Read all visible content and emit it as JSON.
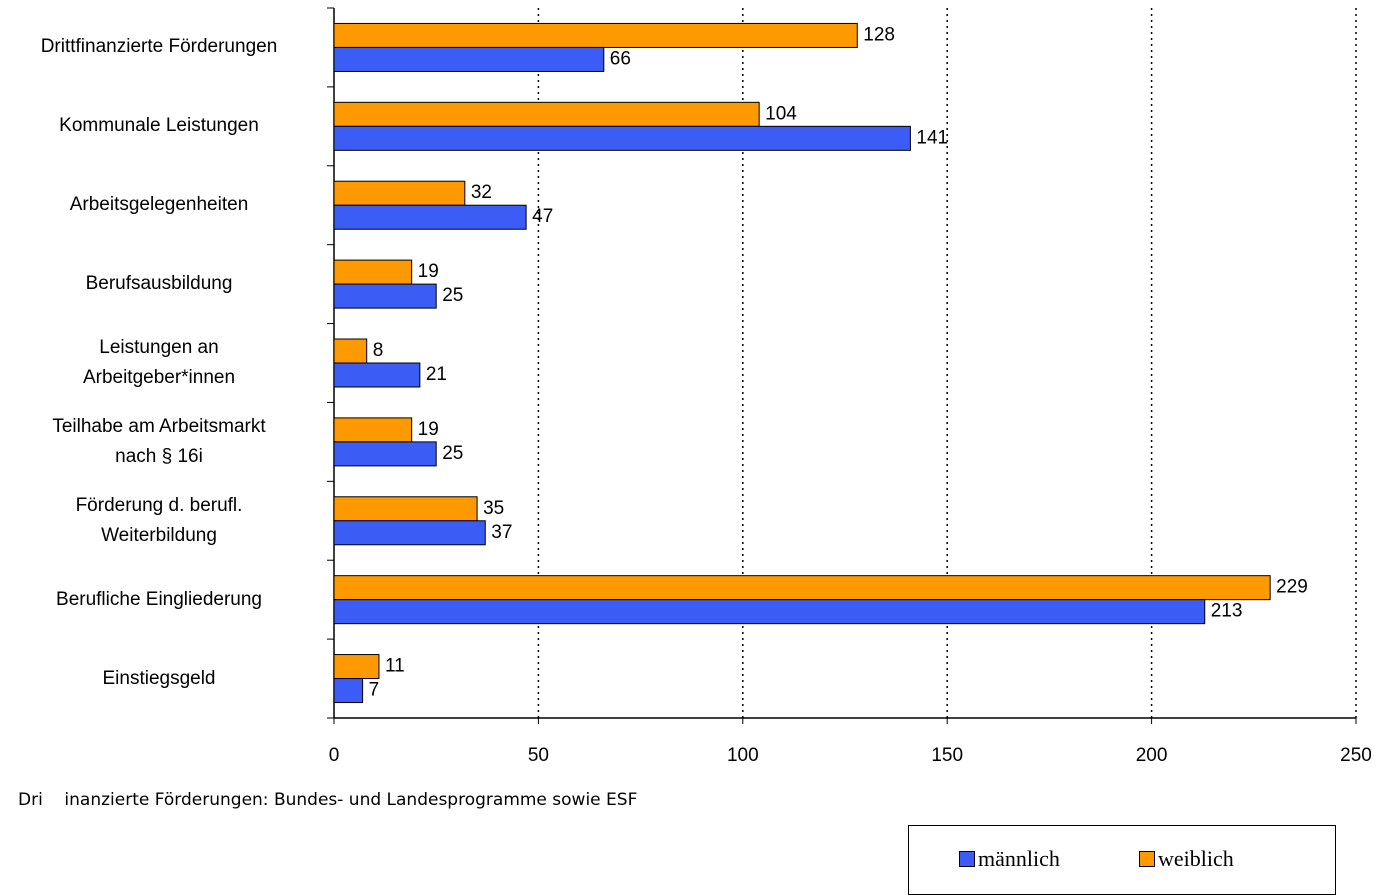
{
  "chart_data": {
    "type": "bar",
    "orientation": "horizontal",
    "categories": [
      "Drittfinanzierte Förderungen",
      "Kommunale Leistungen",
      "Arbeitsgelegenheiten",
      "Berufsausbildung",
      "Leistungen an\nArbeitgeber*innen",
      "Teilhabe am Arbeitsmarkt\nnach § 16i",
      "Förderung d. berufl.\nWeiterbildung",
      "Berufliche Eingliederung",
      "Einstiegsgeld"
    ],
    "series": [
      {
        "name": "männlich",
        "color": "#3b5cf5",
        "values": [
          66,
          141,
          47,
          25,
          21,
          25,
          37,
          213,
          7
        ]
      },
      {
        "name": "weiblich",
        "color": "#ff9900",
        "values": [
          128,
          104,
          32,
          19,
          8,
          19,
          35,
          229,
          11
        ]
      }
    ],
    "xlim": [
      0,
      250
    ],
    "xticks": [
      0,
      50,
      100,
      150,
      200,
      250
    ],
    "grid": true,
    "legend": "bottom-right",
    "note": "Dri    inanzierte Förderungen: Bundes- und Landesprogramme sowie ESF"
  }
}
